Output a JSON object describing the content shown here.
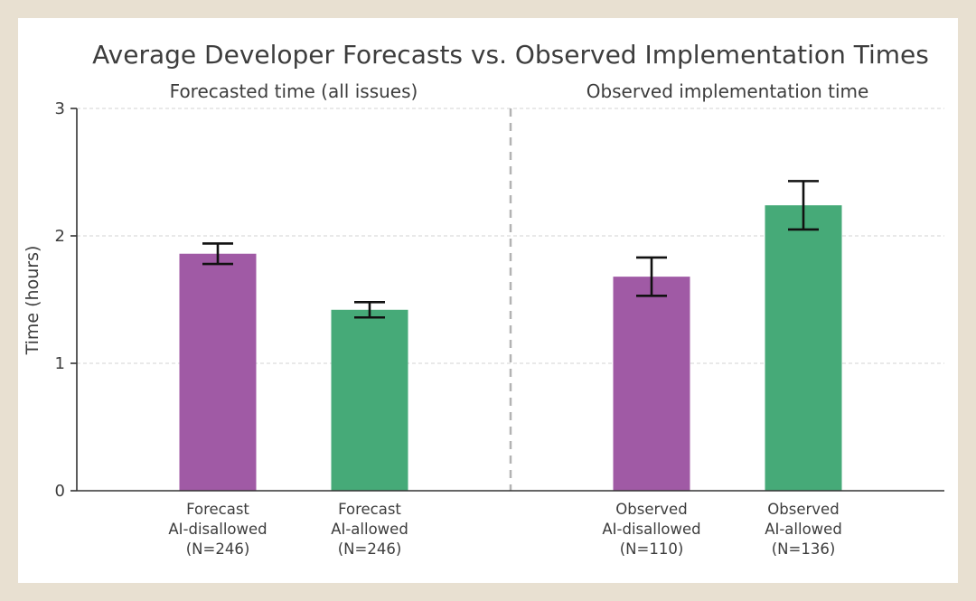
{
  "page": {
    "background_color": "#e8e0d1",
    "card_background_color": "#ffffff"
  },
  "chart_data": {
    "type": "bar",
    "title": "Average Developer Forecasts vs. Observed Implementation Times",
    "ylabel": "Time (hours)",
    "ylim": [
      0,
      3
    ],
    "yticks": [
      0,
      1,
      2,
      3
    ],
    "grid": "dashed-horizontal",
    "separator": "dashed-vertical-between-groups",
    "colors": {
      "ai_disallowed": "#a05aa5",
      "ai_allowed": "#46aa78",
      "error_bar": "#111111",
      "axis": "#333333",
      "gridline": "#dcdcdc",
      "separator": "#b3b3b3",
      "text": "#3d3d3d"
    },
    "groups": [
      {
        "label": "Forecasted time (all issues)",
        "bars": [
          {
            "category_lines": [
              "Forecast",
              "AI-disallowed",
              "(N=246)"
            ],
            "value": 1.86,
            "error": 0.08,
            "color_key": "ai_disallowed"
          },
          {
            "category_lines": [
              "Forecast",
              "AI-allowed",
              "(N=246)"
            ],
            "value": 1.42,
            "error": 0.06,
            "color_key": "ai_allowed"
          }
        ]
      },
      {
        "label": "Observed implementation time",
        "bars": [
          {
            "category_lines": [
              "Observed",
              "AI-disallowed",
              "(N=110)"
            ],
            "value": 1.68,
            "error": 0.15,
            "color_key": "ai_disallowed"
          },
          {
            "category_lines": [
              "Observed",
              "AI-allowed",
              "(N=136)"
            ],
            "value": 2.24,
            "error": 0.19,
            "color_key": "ai_allowed"
          }
        ]
      }
    ]
  }
}
